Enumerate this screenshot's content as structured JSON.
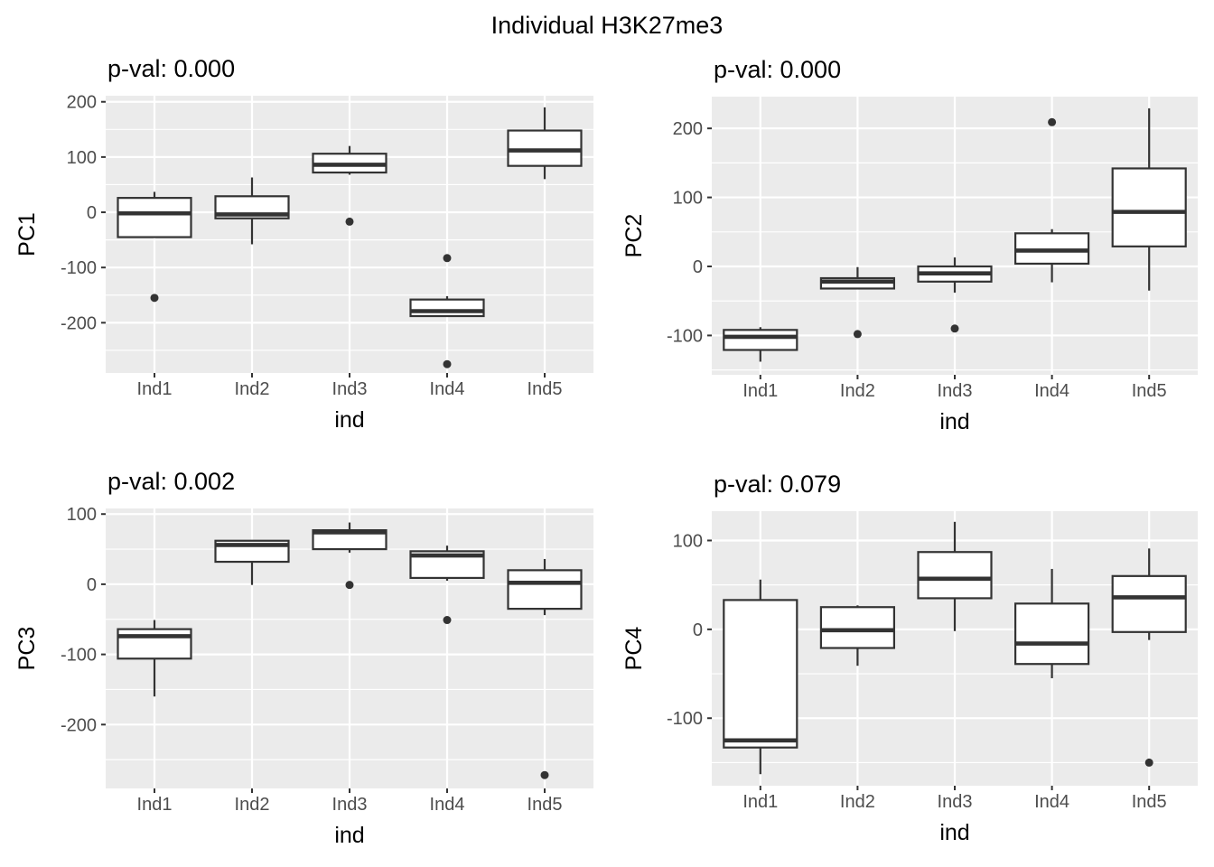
{
  "chart_data": {
    "type": "boxplot",
    "title": "Individual H3K27me3",
    "xlabel": "ind",
    "categories": [
      "Ind1",
      "Ind2",
      "Ind3",
      "Ind4",
      "Ind5"
    ],
    "layout_hint": {
      "grid": "2x2",
      "panel_background": true,
      "major_grid": "horizontal and vertical white lines",
      "minor_grid": "horizontal white lines at 50-unit midpoints"
    },
    "panels": [
      {
        "ylabel": "PC1",
        "annotation": "p-val: 0.000",
        "yticks": [
          -200,
          -100,
          0,
          100,
          200
        ],
        "ylim": [
          -291,
          211
        ],
        "boxes": [
          {
            "category": "Ind1",
            "whisker_low": -45,
            "q1": -45,
            "median": -2,
            "q3": 26,
            "whisker_high": 37,
            "outliers": [
              -155
            ]
          },
          {
            "category": "Ind2",
            "whisker_low": -58,
            "q1": -11,
            "median": -4,
            "q3": 29,
            "whisker_high": 63,
            "outliers": []
          },
          {
            "category": "Ind3",
            "whisker_low": 68,
            "q1": 72,
            "median": 86,
            "q3": 106,
            "whisker_high": 120,
            "outliers": [
              -17
            ]
          },
          {
            "category": "Ind4",
            "whisker_low": -188,
            "q1": -188,
            "median": -179,
            "q3": -158,
            "whisker_high": -152,
            "outliers": [
              -83,
              -275
            ]
          },
          {
            "category": "Ind5",
            "whisker_low": 60,
            "q1": 84,
            "median": 112,
            "q3": 148,
            "whisker_high": 190,
            "outliers": []
          }
        ]
      },
      {
        "ylabel": "PC2",
        "annotation": "p-val: 0.000",
        "yticks": [
          -100,
          0,
          100,
          200
        ],
        "ylim": [
          -157,
          246
        ],
        "boxes": [
          {
            "category": "Ind1",
            "whisker_low": -138,
            "q1": -121,
            "median": -102,
            "q3": -92,
            "whisker_high": -88,
            "outliers": []
          },
          {
            "category": "Ind2",
            "whisker_low": -32,
            "q1": -32,
            "median": -22,
            "q3": -17,
            "whisker_high": -1,
            "outliers": [
              -98
            ]
          },
          {
            "category": "Ind3",
            "whisker_low": -38,
            "q1": -22,
            "median": -10,
            "q3": 0,
            "whisker_high": 13,
            "outliers": [
              -90
            ]
          },
          {
            "category": "Ind4",
            "whisker_low": -23,
            "q1": 4,
            "median": 23,
            "q3": 48,
            "whisker_high": 54,
            "outliers": [
              209
            ]
          },
          {
            "category": "Ind5",
            "whisker_low": -35,
            "q1": 29,
            "median": 79,
            "q3": 142,
            "whisker_high": 229,
            "outliers": []
          }
        ]
      },
      {
        "ylabel": "PC3",
        "annotation": "p-val: 0.002",
        "yticks": [
          -200,
          -100,
          0,
          100
        ],
        "ylim": [
          -291,
          108
        ],
        "boxes": [
          {
            "category": "Ind1",
            "whisker_low": -160,
            "q1": -106,
            "median": -74,
            "q3": -64,
            "whisker_high": -51,
            "outliers": []
          },
          {
            "category": "Ind2",
            "whisker_low": -1,
            "q1": 32,
            "median": 56,
            "q3": 62,
            "whisker_high": 63,
            "outliers": []
          },
          {
            "category": "Ind3",
            "whisker_low": 45,
            "q1": 50,
            "median": 74,
            "q3": 77,
            "whisker_high": 88,
            "outliers": [
              -1
            ]
          },
          {
            "category": "Ind4",
            "whisker_low": 5,
            "q1": 9,
            "median": 41,
            "q3": 47,
            "whisker_high": 55,
            "outliers": [
              -51
            ]
          },
          {
            "category": "Ind5",
            "whisker_low": -44,
            "q1": -35,
            "median": 2,
            "q3": 20,
            "whisker_high": 36,
            "outliers": [
              -272
            ]
          }
        ]
      },
      {
        "ylabel": "PC4",
        "annotation": "p-val: 0.079",
        "yticks": [
          -100,
          0,
          100
        ],
        "ylim": [
          -176,
          133
        ],
        "boxes": [
          {
            "category": "Ind1",
            "whisker_low": -163,
            "q1": -133,
            "median": -125,
            "q3": 33,
            "whisker_high": 56,
            "outliers": []
          },
          {
            "category": "Ind2",
            "whisker_low": -41,
            "q1": -21,
            "median": -1,
            "q3": 25,
            "whisker_high": 27,
            "outliers": []
          },
          {
            "category": "Ind3",
            "whisker_low": -2,
            "q1": 35,
            "median": 57,
            "q3": 87,
            "whisker_high": 121,
            "outliers": []
          },
          {
            "category": "Ind4",
            "whisker_low": -55,
            "q1": -39,
            "median": -16,
            "q3": 29,
            "whisker_high": 68,
            "outliers": []
          },
          {
            "category": "Ind5",
            "whisker_low": -12,
            "q1": -3,
            "median": 36,
            "q3": 60,
            "whisker_high": 91,
            "outliers": [
              -150
            ]
          }
        ]
      }
    ],
    "colors": {
      "panel_background": "#EBEBEB",
      "gridline": "#FFFFFF",
      "box_stroke": "#333333",
      "box_fill": "#FFFFFF",
      "axis_text": "#4D4D4D",
      "tick_mark": "#333333",
      "title_text": "#000000"
    }
  }
}
